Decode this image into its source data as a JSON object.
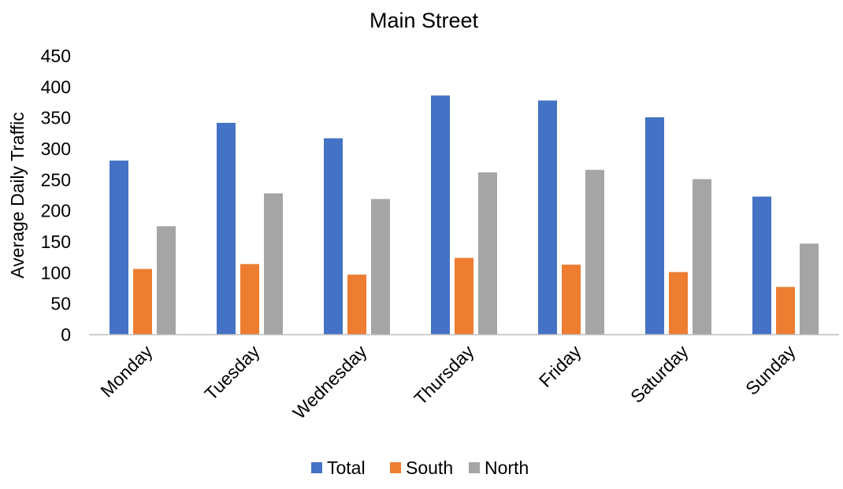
{
  "chart_data": {
    "type": "bar",
    "title": "Main Street",
    "xlabel": "",
    "ylabel": "Average Daily Traffic",
    "ylim": [
      0,
      450
    ],
    "yticks": [
      0,
      50,
      100,
      150,
      200,
      250,
      300,
      350,
      400,
      450
    ],
    "grid": false,
    "legend_position": "bottom",
    "categories": [
      "Monday",
      "Tuesday",
      "Wednesday",
      "Thursday",
      "Friday",
      "Saturday",
      "Sunday"
    ],
    "series": [
      {
        "name": "Total",
        "color": "#4472C4",
        "values": [
          281,
          342,
          317,
          386,
          378,
          351,
          223
        ]
      },
      {
        "name": "South",
        "color": "#ED7D31",
        "values": [
          106,
          114,
          97,
          124,
          113,
          101,
          77
        ]
      },
      {
        "name": "North",
        "color": "#A5A5A5",
        "values": [
          175,
          228,
          219,
          262,
          266,
          251,
          147
        ]
      }
    ]
  }
}
